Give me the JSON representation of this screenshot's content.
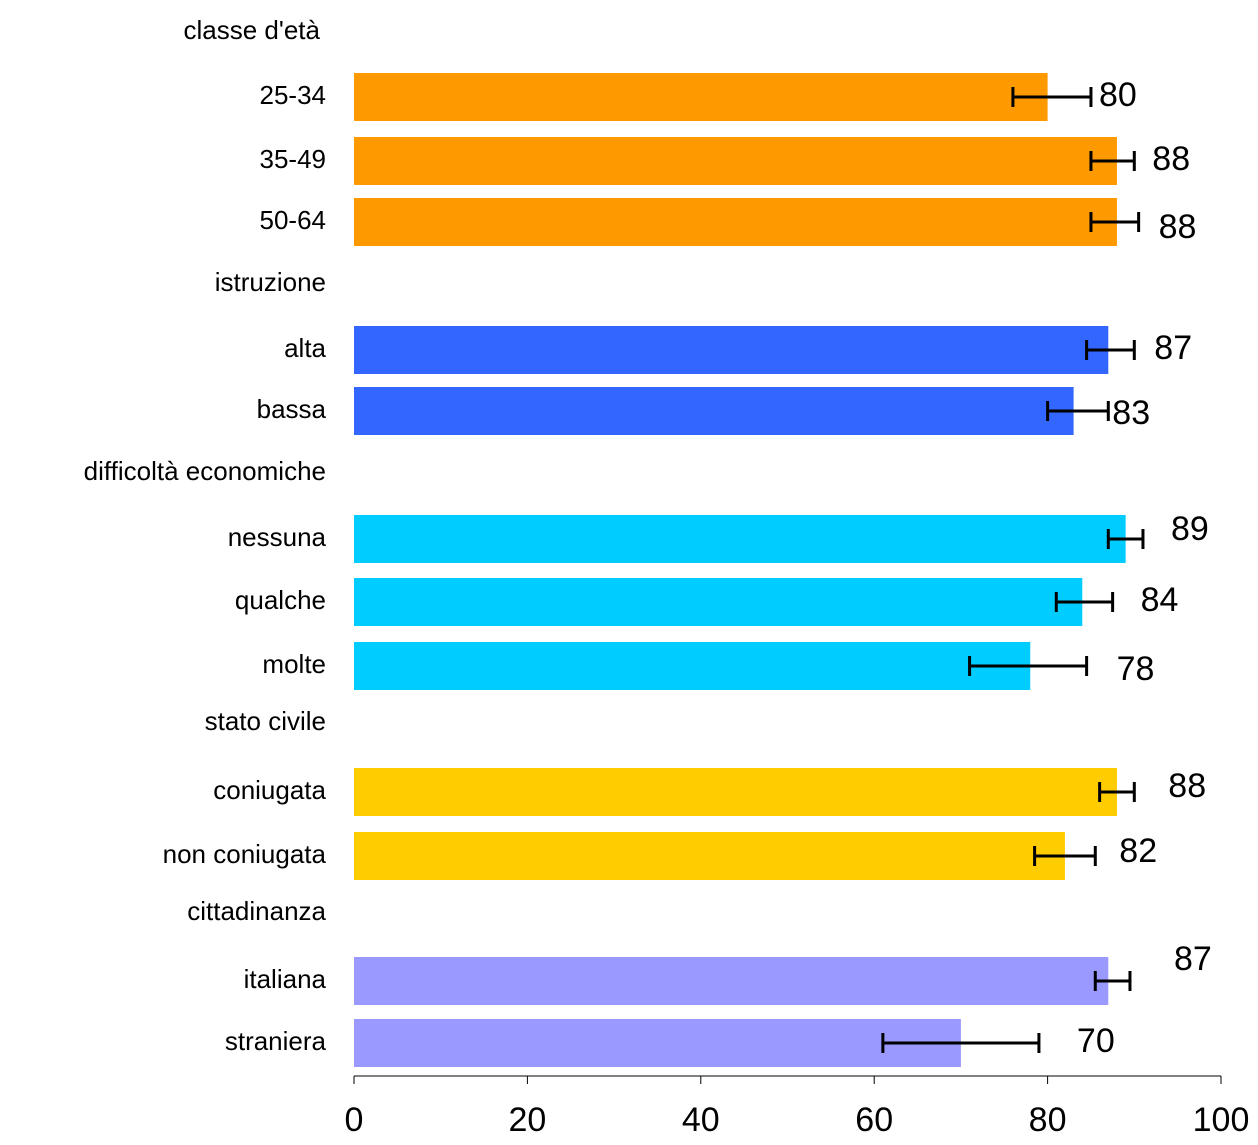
{
  "chart_data": {
    "type": "bar",
    "orientation": "horizontal",
    "xlim": [
      0,
      100
    ],
    "x_ticks": [
      0,
      20,
      40,
      60,
      80,
      100
    ],
    "groups": [
      {
        "name": "classe d'età",
        "color": "#FF9900",
        "items": [
          {
            "label": "25-34",
            "value": 80,
            "ci": [
              76,
              85
            ]
          },
          {
            "label": "35-49",
            "value": 88,
            "ci": [
              85,
              90
            ]
          },
          {
            "label": "50-64",
            "value": 88,
            "ci": [
              85,
              90.5
            ]
          }
        ]
      },
      {
        "name": "istruzione",
        "color": "#3366FF",
        "items": [
          {
            "label": "alta",
            "value": 87,
            "ci": [
              84.5,
              90
            ]
          },
          {
            "label": "bassa",
            "value": 83,
            "ci": [
              80,
              87
            ]
          }
        ]
      },
      {
        "name": "difficoltà economiche",
        "color": "#00CCFF",
        "items": [
          {
            "label": "nessuna",
            "value": 89,
            "ci": [
              87,
              91
            ]
          },
          {
            "label": "qualche",
            "value": 84,
            "ci": [
              81,
              87.5
            ]
          },
          {
            "label": "molte",
            "value": 78,
            "ci": [
              71,
              84.5
            ]
          }
        ]
      },
      {
        "name": "stato civile",
        "color": "#FFCC00",
        "items": [
          {
            "label": "coniugata",
            "value": 88,
            "ci": [
              86,
              90
            ]
          },
          {
            "label": "non coniugata",
            "value": 82,
            "ci": [
              78.5,
              85.5
            ]
          }
        ]
      },
      {
        "name": "cittadinanza",
        "color": "#9999FF",
        "items": [
          {
            "label": "italiana",
            "value": 87,
            "ci": [
              85.5,
              89.5
            ]
          },
          {
            "label": "straniera",
            "value": 70,
            "ci": [
              61,
              79
            ]
          }
        ]
      }
    ]
  }
}
